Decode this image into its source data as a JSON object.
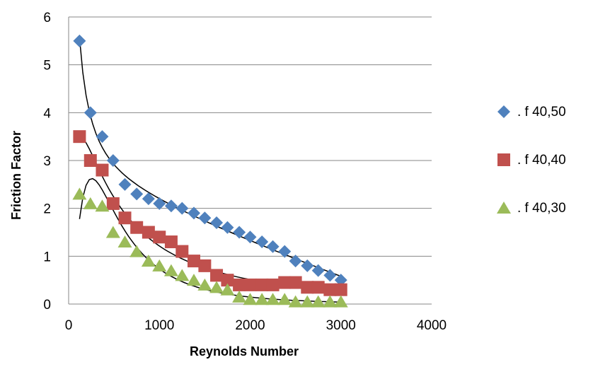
{
  "chart_data": {
    "type": "scatter",
    "title": "",
    "xlabel": "Reynolds Number",
    "ylabel": "Friction Factor",
    "xlim": [
      0,
      4000
    ],
    "ylim": [
      0,
      6
    ],
    "x_ticks": [
      "0",
      "1000",
      "2000",
      "3000",
      "4000"
    ],
    "y_ticks": [
      "0",
      "1",
      "2",
      "3",
      "4",
      "5",
      "6"
    ],
    "grid": "horizontal major gridlines",
    "legend_position": "right",
    "trendlines": true,
    "series": [
      {
        "name": ". f 40,50",
        "marker": "diamond",
        "color": "#4F81BD",
        "x": [
          120,
          240,
          370,
          490,
          620,
          750,
          880,
          1000,
          1130,
          1250,
          1380,
          1500,
          1630,
          1750,
          1880,
          2000,
          2130,
          2250,
          2380,
          2500,
          2630,
          2750,
          2880,
          3000
        ],
        "y": [
          5.5,
          4.0,
          3.5,
          3.0,
          2.5,
          2.3,
          2.2,
          2.1,
          2.05,
          2.0,
          1.9,
          1.8,
          1.7,
          1.6,
          1.5,
          1.4,
          1.3,
          1.2,
          1.1,
          0.9,
          0.8,
          0.7,
          0.6,
          0.5
        ]
      },
      {
        "name": ". f 40,40",
        "marker": "square",
        "color": "#C0504D",
        "x": [
          120,
          240,
          370,
          490,
          620,
          750,
          880,
          1000,
          1130,
          1250,
          1380,
          1500,
          1630,
          1750,
          1880,
          2000,
          2130,
          2250,
          2380,
          2500,
          2630,
          2750,
          2880,
          3000
        ],
        "y": [
          3.5,
          3.0,
          2.8,
          2.1,
          1.8,
          1.6,
          1.5,
          1.4,
          1.3,
          1.1,
          0.9,
          0.8,
          0.6,
          0.5,
          0.4,
          0.4,
          0.4,
          0.4,
          0.45,
          0.45,
          0.35,
          0.35,
          0.3,
          0.3
        ]
      },
      {
        "name": ". f 40,30",
        "marker": "triangle",
        "color": "#9BBB59",
        "x": [
          120,
          240,
          370,
          490,
          620,
          750,
          880,
          1000,
          1130,
          1250,
          1380,
          1500,
          1630,
          1750,
          1880,
          2000,
          2130,
          2250,
          2380,
          2500,
          2630,
          2750,
          2880,
          3000
        ],
        "y": [
          2.3,
          2.1,
          2.05,
          1.5,
          1.3,
          1.1,
          0.9,
          0.8,
          0.7,
          0.6,
          0.5,
          0.4,
          0.35,
          0.3,
          0.15,
          0.1,
          0.1,
          0.1,
          0.1,
          0.05,
          0.05,
          0.05,
          0.05,
          0.05
        ]
      }
    ]
  }
}
